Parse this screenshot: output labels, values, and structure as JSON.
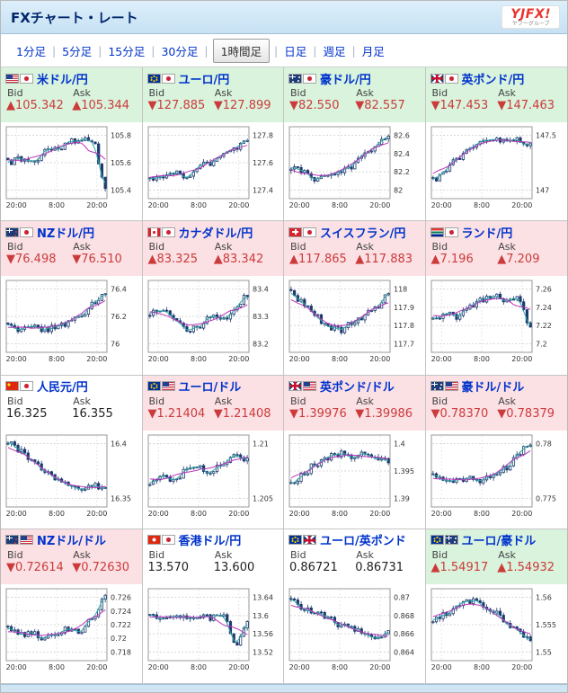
{
  "page": {
    "title": "FXチャート・レート",
    "logo_main": "YJFX!",
    "logo_sub": "ヤフーグループ"
  },
  "tabs": [
    {
      "label": "1分足",
      "key": "1min",
      "selected": false
    },
    {
      "label": "5分足",
      "key": "5min",
      "selected": false
    },
    {
      "label": "15分足",
      "key": "15min",
      "selected": false
    },
    {
      "label": "30分足",
      "key": "30min",
      "selected": false
    },
    {
      "label": "1時間足",
      "key": "1hour",
      "selected": true
    },
    {
      "label": "日足",
      "key": "1day",
      "selected": false
    },
    {
      "label": "週足",
      "key": "1week",
      "selected": false
    },
    {
      "label": "月足",
      "key": "1month",
      "selected": false
    }
  ],
  "labels": {
    "bid": "Bid",
    "ask": "Ask"
  },
  "symbols": {
    "up": "▲",
    "down": "▼"
  },
  "colors": {
    "up_bg": "#d9f3dc",
    "down_bg": "#fbe0e4",
    "flat_bg": "#ffffff",
    "value_changed": "#cc3b3b",
    "value_flat": "#222222",
    "link": "#0033cc",
    "candle": "#1c3a6e",
    "ma_long": "#bb35bb",
    "ma_short": "#2fa8a8",
    "grid_line": "#cccccc",
    "plot_border": "#999999"
  },
  "cells": [
    {
      "pair": "米ドル/円",
      "flags": [
        "us",
        "jp"
      ],
      "tone": "up",
      "dir": "up",
      "bid": "105.342",
      "ask": "105.344",
      "chart": {
        "y_ticks": [
          "105.8",
          "105.6",
          "105.4"
        ],
        "x_ticks": [
          "20:00",
          "8:00",
          "20:00"
        ],
        "shape": [
          0.5,
          0.55,
          0.5,
          0.65,
          0.7,
          0.8,
          0.85,
          0.8,
          0.15
        ]
      }
    },
    {
      "pair": "ユーロ/円",
      "flags": [
        "eu",
        "jp"
      ],
      "tone": "up",
      "dir": "down",
      "bid": "127.885",
      "ask": "127.899",
      "chart": {
        "y_ticks": [
          "127.8",
          "127.6",
          "127.4"
        ],
        "x_ticks": [
          "20:00",
          "8:00",
          "20:00"
        ],
        "shape": [
          0.25,
          0.3,
          0.35,
          0.3,
          0.45,
          0.5,
          0.6,
          0.7,
          0.85
        ]
      }
    },
    {
      "pair": "豪ドル/円",
      "flags": [
        "au",
        "jp"
      ],
      "tone": "up",
      "dir": "down",
      "bid": "82.550",
      "ask": "82.557",
      "chart": {
        "y_ticks": [
          "82.6",
          "82.4",
          "82.2",
          "82"
        ],
        "x_ticks": [
          "20:00",
          "8:00",
          "20:00"
        ],
        "shape": [
          0.45,
          0.35,
          0.25,
          0.3,
          0.35,
          0.45,
          0.6,
          0.75,
          0.9
        ]
      }
    },
    {
      "pair": "英ポンド/円",
      "flags": [
        "gb",
        "jp"
      ],
      "tone": "up",
      "dir": "down",
      "bid": "147.453",
      "ask": "147.463",
      "chart": {
        "y_ticks": [
          "147.5",
          "147"
        ],
        "x_ticks": [
          "20:00",
          "8:00",
          "20:00"
        ],
        "shape": [
          0.25,
          0.4,
          0.55,
          0.7,
          0.8,
          0.85,
          0.8,
          0.85,
          0.75
        ]
      }
    },
    {
      "pair": "NZドル/円",
      "flags": [
        "nz",
        "jp"
      ],
      "tone": "down",
      "dir": "down",
      "bid": "76.498",
      "ask": "76.510",
      "chart": {
        "y_ticks": [
          "76.4",
          "76.2",
          "76"
        ],
        "x_ticks": [
          "20:00",
          "8:00",
          "20:00"
        ],
        "shape": [
          0.35,
          0.3,
          0.35,
          0.3,
          0.35,
          0.4,
          0.5,
          0.7,
          0.85
        ]
      }
    },
    {
      "pair": "カナダドル/円",
      "flags": [
        "ca",
        "jp"
      ],
      "tone": "down",
      "dir": "up",
      "bid": "83.325",
      "ask": "83.342",
      "chart": {
        "y_ticks": [
          "83.4",
          "83.3",
          "83.2"
        ],
        "x_ticks": [
          "20:00",
          "8:00",
          "20:00"
        ],
        "shape": [
          0.55,
          0.6,
          0.45,
          0.3,
          0.35,
          0.5,
          0.45,
          0.6,
          0.8
        ]
      }
    },
    {
      "pair": "スイスフラン/円",
      "flags": [
        "ch",
        "jp"
      ],
      "tone": "down",
      "dir": "up",
      "bid": "117.865",
      "ask": "117.883",
      "chart": {
        "y_ticks": [
          "118",
          "117.9",
          "117.8",
          "117.7"
        ],
        "x_ticks": [
          "20:00",
          "8:00",
          "20:00"
        ],
        "shape": [
          0.85,
          0.7,
          0.5,
          0.35,
          0.3,
          0.4,
          0.5,
          0.65,
          0.8
        ]
      }
    },
    {
      "pair": "ランド/円",
      "flags": [
        "za",
        "jp"
      ],
      "tone": "down",
      "dir": "up",
      "bid": "7.196",
      "ask": "7.209",
      "chart": {
        "y_ticks": [
          "7.26",
          "7.24",
          "7.22",
          "7.2"
        ],
        "x_ticks": [
          "20:00",
          "8:00",
          "20:00"
        ],
        "shape": [
          0.45,
          0.55,
          0.5,
          0.65,
          0.75,
          0.8,
          0.7,
          0.75,
          0.3
        ]
      }
    },
    {
      "pair": "人民元/円",
      "flags": [
        "cn",
        "jp"
      ],
      "tone": "flat",
      "dir": "none",
      "bid": "16.325",
      "ask": "16.355",
      "chart": {
        "y_ticks": [
          "16.4",
          "16.35"
        ],
        "x_ticks": [
          "20:00",
          "8:00",
          "20:00"
        ],
        "shape": [
          0.9,
          0.8,
          0.65,
          0.5,
          0.4,
          0.3,
          0.25,
          0.3,
          0.25
        ]
      }
    },
    {
      "pair": "ユーロ/ドル",
      "flags": [
        "eu",
        "us"
      ],
      "tone": "down",
      "dir": "down",
      "bid": "1.21404",
      "ask": "1.21408",
      "chart": {
        "y_ticks": [
          "1.21",
          "1.205"
        ],
        "x_ticks": [
          "20:00",
          "8:00",
          "20:00"
        ],
        "shape": [
          0.3,
          0.4,
          0.35,
          0.5,
          0.55,
          0.5,
          0.6,
          0.7,
          0.65
        ]
      }
    },
    {
      "pair": "英ポンド/ドル",
      "flags": [
        "gb",
        "us"
      ],
      "tone": "down",
      "dir": "down",
      "bid": "1.39976",
      "ask": "1.39986",
      "chart": {
        "y_ticks": [
          "1.4",
          "1.395",
          "1.39"
        ],
        "x_ticks": [
          "20:00",
          "8:00",
          "20:00"
        ],
        "shape": [
          0.3,
          0.45,
          0.6,
          0.7,
          0.75,
          0.7,
          0.75,
          0.7,
          0.65
        ]
      }
    },
    {
      "pair": "豪ドル/ドル",
      "flags": [
        "au",
        "us"
      ],
      "tone": "down",
      "dir": "down",
      "bid": "0.78370",
      "ask": "0.78379",
      "chart": {
        "y_ticks": [
          "0.78",
          "0.775"
        ],
        "x_ticks": [
          "20:00",
          "8:00",
          "20:00"
        ],
        "shape": [
          0.45,
          0.4,
          0.35,
          0.4,
          0.35,
          0.45,
          0.55,
          0.75,
          0.9
        ]
      }
    },
    {
      "pair": "NZドル/ドル",
      "flags": [
        "nz",
        "us"
      ],
      "tone": "down",
      "dir": "down",
      "bid": "0.72614",
      "ask": "0.72630",
      "chart": {
        "y_ticks": [
          "0.726",
          "0.724",
          "0.722",
          "0.72",
          "0.718"
        ],
        "x_ticks": [
          "20:00",
          "8:00",
          "20:00"
        ],
        "shape": [
          0.45,
          0.35,
          0.4,
          0.3,
          0.35,
          0.45,
          0.4,
          0.6,
          0.9
        ]
      }
    },
    {
      "pair": "香港ドル/円",
      "flags": [
        "hk",
        "jp"
      ],
      "tone": "flat",
      "dir": "none",
      "bid": "13.570",
      "ask": "13.600",
      "chart": {
        "y_ticks": [
          "13.64",
          "13.6",
          "13.56",
          "13.52"
        ],
        "x_ticks": [
          "20:00",
          "8:00",
          "20:00"
        ],
        "shape": [
          0.65,
          0.6,
          0.65,
          0.6,
          0.65,
          0.6,
          0.65,
          0.2,
          0.55
        ]
      }
    },
    {
      "pair": "ユーロ/英ポンド",
      "flags": [
        "eu",
        "gb"
      ],
      "tone": "flat",
      "dir": "none",
      "bid": "0.86721",
      "ask": "0.86731",
      "chart": {
        "y_ticks": [
          "0.87",
          "0.868",
          "0.866",
          "0.864"
        ],
        "x_ticks": [
          "20:00",
          "8:00",
          "20:00"
        ],
        "shape": [
          0.85,
          0.75,
          0.7,
          0.6,
          0.5,
          0.45,
          0.35,
          0.3,
          0.4
        ]
      }
    },
    {
      "pair": "ユーロ/豪ドル",
      "flags": [
        "eu",
        "au"
      ],
      "tone": "up",
      "dir": "up",
      "bid": "1.54917",
      "ask": "1.54932",
      "chart": {
        "y_ticks": [
          "1.56",
          "1.555",
          "1.55"
        ],
        "x_ticks": [
          "20:00",
          "8:00",
          "20:00"
        ],
        "shape": [
          0.55,
          0.65,
          0.75,
          0.85,
          0.8,
          0.7,
          0.5,
          0.4,
          0.3
        ]
      }
    }
  ]
}
